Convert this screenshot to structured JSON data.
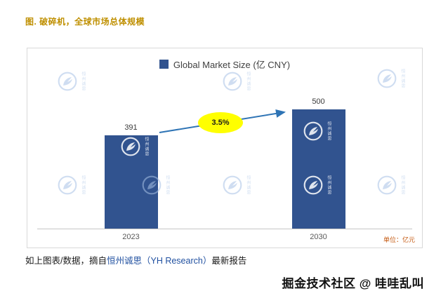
{
  "header": {
    "title": "图. 破碎机，全球市场总体规模"
  },
  "chart_data": {
    "type": "bar",
    "title": "Global Market Size (亿 CNY)",
    "legend": [
      "Global Market Size (亿 CNY)"
    ],
    "legend_position": "top",
    "categories": [
      "2023",
      "2030"
    ],
    "values": [
      391,
      500
    ],
    "data_labels": [
      "391",
      "500"
    ],
    "ylim": [
      0,
      560
    ],
    "grid": false,
    "bar_color": "#31538F",
    "annotation": {
      "label": "3.5%",
      "type": "cagr-arrow"
    },
    "unit_note": "单位：亿元"
  },
  "watermark": {
    "text": "恒州诚思"
  },
  "footer": {
    "source_prefix": "如上图表/数据，摘自",
    "source_link": "恒州诚思（YH Research）",
    "source_suffix": "最新报告",
    "brand": "掘金技术社区 @ 哇哇乱叫"
  },
  "colors": {
    "bar": "#31538F",
    "title": "#BF8F00",
    "annotation_bg": "#FFFF00",
    "arrow": "#2E74B5",
    "link": "#2050A0",
    "watermark_blue": "#A9C3E6",
    "unit_note": "#C55A11"
  }
}
